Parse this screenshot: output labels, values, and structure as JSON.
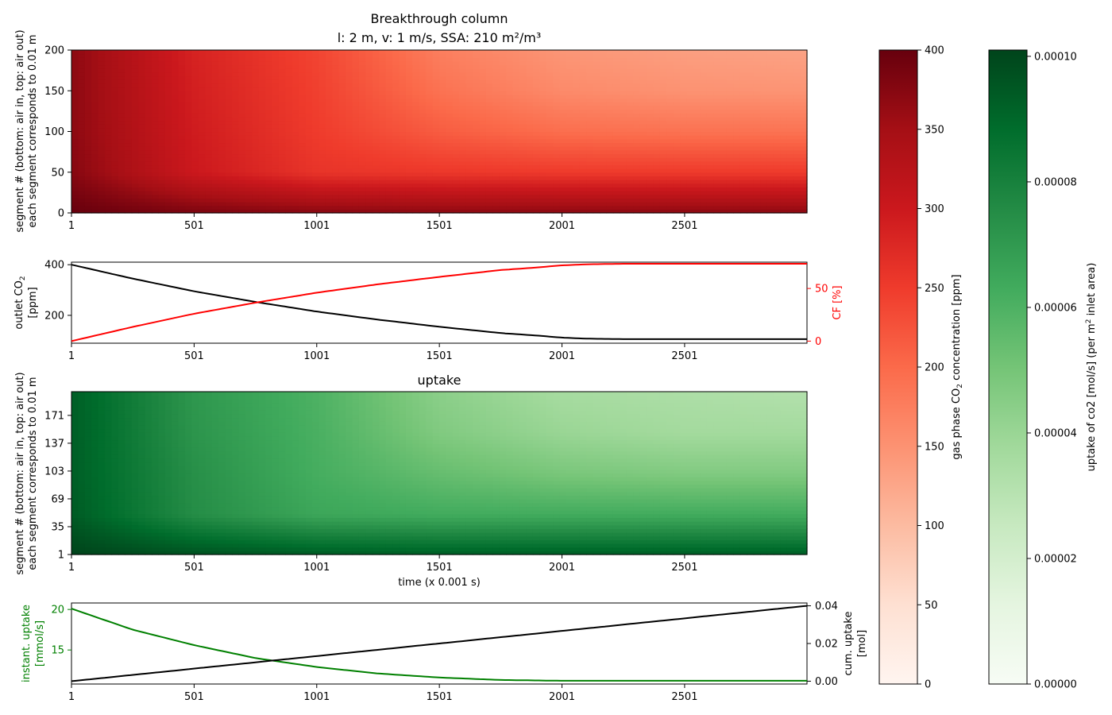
{
  "figure": {
    "title_line1": "Breakthrough column",
    "title_line2": "l: 2 m, v: 1 m/s, SSA: 210 m²/m³"
  },
  "colors": {
    "red_axis": "#ff0000",
    "green_axis": "#008000",
    "black_line": "#000000",
    "red_cmap_stops": [
      "#fff5f0",
      "#fee0d2",
      "#fcbba1",
      "#fc9272",
      "#fb6a4a",
      "#ef3b2c",
      "#cb181d",
      "#a50f15",
      "#67000d"
    ],
    "green_cmap_stops": [
      "#f7fcf5",
      "#e5f5e0",
      "#c7e9c0",
      "#a1d99b",
      "#74c476",
      "#41ab5d",
      "#238b45",
      "#006d2c",
      "#00441b"
    ]
  },
  "chart_data": [
    {
      "id": "concentration_heatmap",
      "type": "heatmap",
      "title": "",
      "xlabel": "",
      "ylabel_line1": "segment # (bottom: air in, top: air out)",
      "ylabel_line2": "each segment corresponds to 0.01 m",
      "xlim": [
        1,
        3000
      ],
      "ylim": [
        0,
        200
      ],
      "xticks": [
        "1",
        "501",
        "1001",
        "1501",
        "2001",
        "2501"
      ],
      "yticks": [
        "0",
        "50",
        "100",
        "150",
        "200"
      ],
      "value_range": [
        0,
        400
      ],
      "samples": {
        "time": [
          1,
          501,
          1001,
          1501,
          2001,
          2501,
          3000
        ],
        "segment": [
          0,
          50,
          100,
          150,
          200
        ],
        "values": [
          [
            400,
            385,
            375,
            372,
            372,
            372,
            372
          ],
          [
            375,
            300,
            260,
            255,
            252,
            252,
            252
          ],
          [
            370,
            295,
            250,
            215,
            195,
            190,
            190
          ],
          [
            370,
            290,
            245,
            190,
            160,
            150,
            148
          ],
          [
            370,
            285,
            240,
            175,
            145,
            135,
            130
          ]
        ]
      }
    },
    {
      "id": "outlet_co2",
      "type": "line",
      "xlim": [
        1,
        3000
      ],
      "xticks": [
        "1",
        "501",
        "1001",
        "1501",
        "2001",
        "2501"
      ],
      "ylabel_line1": "outlet CO",
      "ylabel_line1_sub": "2",
      "ylabel_line2": "[ppm]",
      "left_ylim": [
        90,
        410
      ],
      "left_yticks": [
        "200",
        "400"
      ],
      "right_ylabel": "CF [%]",
      "right_ylim": [
        -2,
        75
      ],
      "right_yticks": [
        "0",
        "50"
      ],
      "series": [
        {
          "axis": "left",
          "x": [
            1,
            251,
            501,
            751,
            1001,
            1251,
            1501,
            1751,
            1901,
            2001,
            2101,
            2251,
            2501,
            3000
          ],
          "y": [
            400,
            345,
            295,
            253,
            215,
            183,
            155,
            130,
            120,
            112,
            108,
            106,
            106,
            106
          ]
        },
        {
          "axis": "right",
          "x": [
            1,
            251,
            501,
            751,
            1001,
            1251,
            1501,
            1751,
            1901,
            2001,
            2101,
            2251,
            2501,
            3000
          ],
          "y": [
            0,
            13.5,
            26,
            36.5,
            46,
            54,
            61,
            67.5,
            70,
            72,
            73,
            73.5,
            73.5,
            73.5
          ]
        }
      ]
    },
    {
      "id": "uptake_heatmap",
      "type": "heatmap",
      "title": "uptake",
      "xlabel": "time (x 0.001 s)",
      "ylabel_line1": "segment # (bottom: air in, top: air out)",
      "ylabel_line2": "each segment corresponds to 0.01 m",
      "xlim": [
        1,
        3000
      ],
      "ylim": [
        1,
        200
      ],
      "xticks": [
        "1",
        "501",
        "1001",
        "1501",
        "2001",
        "2501"
      ],
      "yticks": [
        "1",
        "35",
        "69",
        "103",
        "137",
        "171"
      ],
      "value_range": [
        0,
        0.000101
      ],
      "samples": {
        "time": [
          1,
          501,
          1001,
          1501,
          2001,
          2501,
          3000
        ],
        "segment": [
          1,
          50,
          100,
          150,
          200
        ],
        "values": [
          [
            0.000101,
            9.7e-05,
            9.4e-05,
            9.3e-05,
            9.3e-05,
            9.3e-05,
            9.3e-05
          ],
          [
            9.4e-05,
            7.5e-05,
            6.5e-05,
            6.3e-05,
            6.3e-05,
            6.3e-05,
            6.3e-05
          ],
          [
            9.3e-05,
            7.4e-05,
            6.2e-05,
            5.4e-05,
            4.9e-05,
            4.7e-05,
            4.7e-05
          ],
          [
            9.3e-05,
            7.2e-05,
            6.1e-05,
            4.7e-05,
            4e-05,
            3.7e-05,
            3.7e-05
          ],
          [
            9.3e-05,
            7.1e-05,
            6e-05,
            4.4e-05,
            3.6e-05,
            3.4e-05,
            3.2e-05
          ]
        ]
      }
    },
    {
      "id": "uptake_lines",
      "type": "line",
      "xlim": [
        1,
        3000
      ],
      "xticks": [
        "1",
        "501",
        "1001",
        "1501",
        "2001",
        "2501"
      ],
      "left_ylabel_line1": "instant. uptake",
      "left_ylabel_line2": "[mmol/s]",
      "left_ylim": [
        10.8,
        20.8
      ],
      "left_yticks": [
        "15",
        "20"
      ],
      "right_ylabel_line1": "cum. uptake",
      "right_ylabel_line2": "[mol]",
      "right_ylim": [
        -0.0015,
        0.0415
      ],
      "right_yticks": [
        "0.00",
        "0.02",
        "0.04"
      ],
      "series": [
        {
          "axis": "left",
          "x": [
            1,
            251,
            501,
            751,
            1001,
            1251,
            1501,
            1751,
            2001,
            2251,
            2501,
            3000
          ],
          "y": [
            20.1,
            17.5,
            15.6,
            14.0,
            12.9,
            12.1,
            11.6,
            11.3,
            11.2,
            11.2,
            11.2,
            11.2
          ]
        },
        {
          "axis": "right",
          "x": [
            1,
            3000
          ],
          "y": [
            0.0,
            0.04
          ]
        }
      ]
    },
    {
      "id": "colorbar_concentration",
      "type": "colorbar",
      "label_pre": "gas phase CO",
      "label_sub": "2",
      "label_post": " concentration [ppm]",
      "range": [
        0,
        400
      ],
      "ticks": [
        "0",
        "50",
        "100",
        "150",
        "200",
        "250",
        "300",
        "350",
        "400"
      ]
    },
    {
      "id": "colorbar_uptake",
      "type": "colorbar",
      "label_pre": "uptake of co2 [mol/s] (per m",
      "label_sup": "2",
      "label_post": " inlet area)",
      "range": [
        0,
        0.000101
      ],
      "ticks": [
        "0.00000",
        "0.00002",
        "0.00004",
        "0.00006",
        "0.00008",
        "0.00010"
      ]
    }
  ]
}
